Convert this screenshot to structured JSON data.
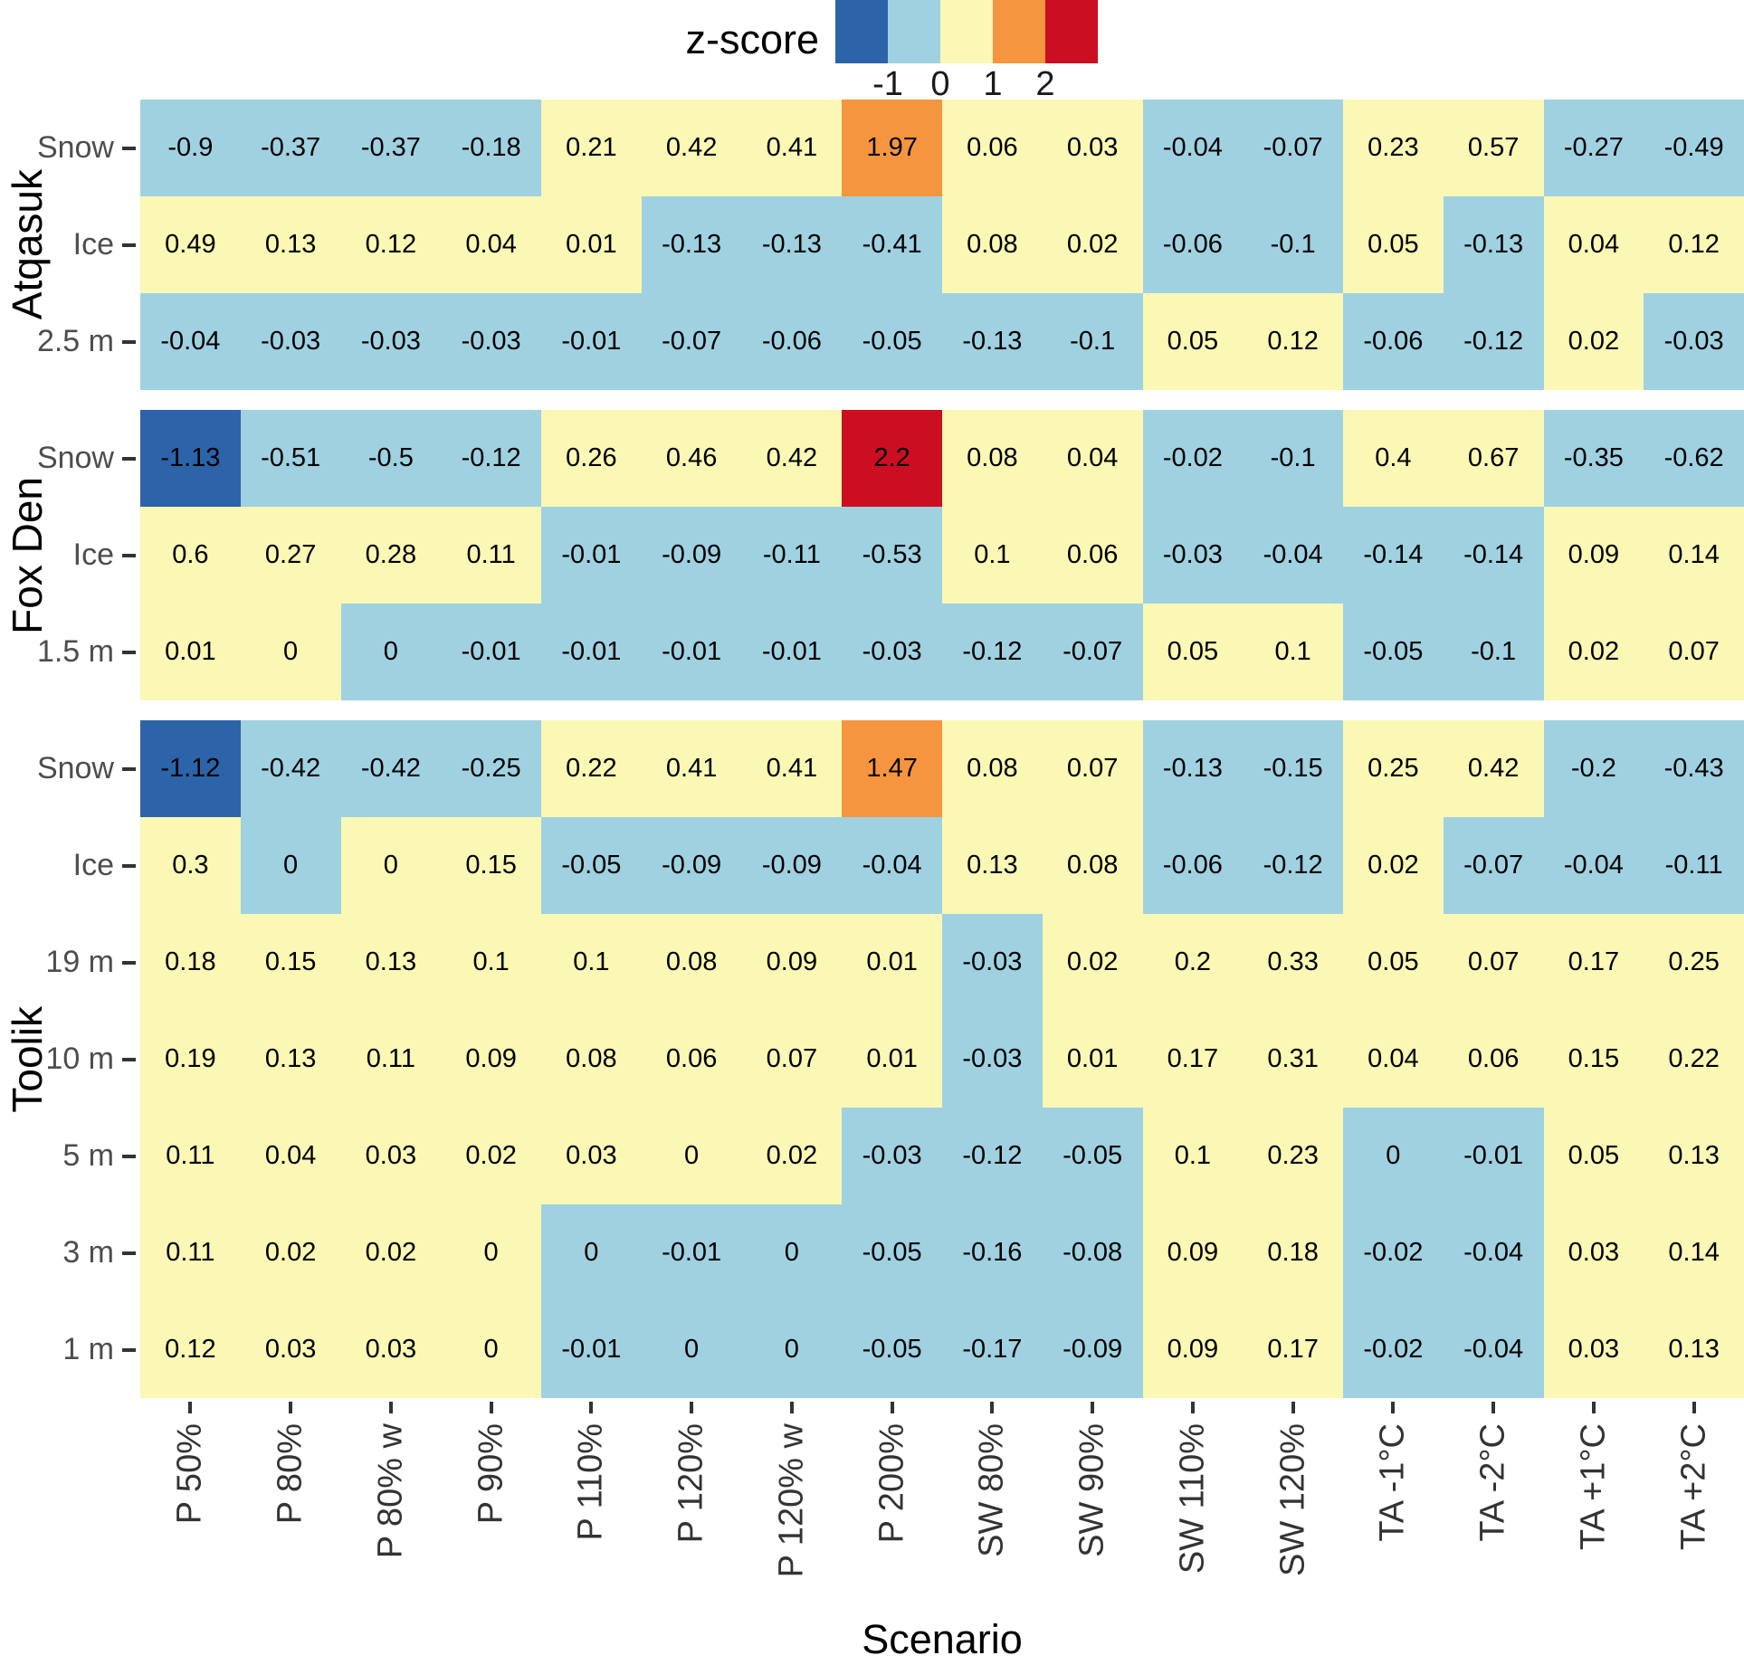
{
  "chart_data": {
    "type": "heatmap",
    "legend_title": "z-score",
    "legend_ticks": [
      "-1",
      "0",
      "1",
      "2"
    ],
    "xlabel": "Scenario",
    "bin_order": [
      "darkblue",
      "lightblue",
      "yellow",
      "orange",
      "red"
    ],
    "colors": {
      "darkblue": "#2C63A9",
      "lightblue": "#9FD1E1",
      "yellow": "#FAF8B4",
      "orange": "#F6953F",
      "red": "#CB0E21"
    },
    "bin_meaning": {
      "darkblue": "< -1",
      "lightblue": "-1 to 0",
      "yellow": "0 to 1",
      "orange": "1 to 2",
      "red": "> 2"
    },
    "x_categories": [
      "P 50%",
      "P 80%",
      "P 80% w",
      "P 90%",
      "P 110%",
      "P 120%",
      "P 120% w",
      "P 200%",
      "SW 80%",
      "SW 90%",
      "SW 110%",
      "SW 120%",
      "TA -1°C",
      "TA -2°C",
      "TA +1°C",
      "TA +2°C"
    ],
    "facets": [
      {
        "label": "Atqasuk",
        "rows": [
          {
            "label": "Snow",
            "values": [
              "-0.9",
              "-0.37",
              "-0.37",
              "-0.18",
              "0.21",
              "0.42",
              "0.41",
              "1.97",
              "0.06",
              "0.03",
              "-0.04",
              "-0.07",
              "0.23",
              "0.57",
              "-0.27",
              "-0.49"
            ],
            "bins": [
              "lightblue",
              "lightblue",
              "lightblue",
              "lightblue",
              "yellow",
              "yellow",
              "yellow",
              "orange",
              "yellow",
              "yellow",
              "lightblue",
              "lightblue",
              "yellow",
              "yellow",
              "lightblue",
              "lightblue"
            ]
          },
          {
            "label": "Ice",
            "values": [
              "0.49",
              "0.13",
              "0.12",
              "0.04",
              "0.01",
              "-0.13",
              "-0.13",
              "-0.41",
              "0.08",
              "0.02",
              "-0.06",
              "-0.1",
              "0.05",
              "-0.13",
              "0.04",
              "0.12"
            ],
            "bins": [
              "yellow",
              "yellow",
              "yellow",
              "yellow",
              "yellow",
              "lightblue",
              "lightblue",
              "lightblue",
              "yellow",
              "yellow",
              "lightblue",
              "lightblue",
              "yellow",
              "lightblue",
              "yellow",
              "yellow"
            ]
          },
          {
            "label": "2.5 m",
            "values": [
              "-0.04",
              "-0.03",
              "-0.03",
              "-0.03",
              "-0.01",
              "-0.07",
              "-0.06",
              "-0.05",
              "-0.13",
              "-0.1",
              "0.05",
              "0.12",
              "-0.06",
              "-0.12",
              "0.02",
              "-0.03"
            ],
            "bins": [
              "lightblue",
              "lightblue",
              "lightblue",
              "lightblue",
              "lightblue",
              "lightblue",
              "lightblue",
              "lightblue",
              "lightblue",
              "lightblue",
              "yellow",
              "yellow",
              "lightblue",
              "lightblue",
              "yellow",
              "lightblue"
            ]
          }
        ]
      },
      {
        "label": "Fox Den",
        "rows": [
          {
            "label": "Snow",
            "values": [
              "-1.13",
              "-0.51",
              "-0.5",
              "-0.12",
              "0.26",
              "0.46",
              "0.42",
              "2.2",
              "0.08",
              "0.04",
              "-0.02",
              "-0.1",
              "0.4",
              "0.67",
              "-0.35",
              "-0.62"
            ],
            "bins": [
              "darkblue",
              "lightblue",
              "lightblue",
              "lightblue",
              "yellow",
              "yellow",
              "yellow",
              "red",
              "yellow",
              "yellow",
              "lightblue",
              "lightblue",
              "yellow",
              "yellow",
              "lightblue",
              "lightblue"
            ]
          },
          {
            "label": "Ice",
            "values": [
              "0.6",
              "0.27",
              "0.28",
              "0.11",
              "-0.01",
              "-0.09",
              "-0.11",
              "-0.53",
              "0.1",
              "0.06",
              "-0.03",
              "-0.04",
              "-0.14",
              "-0.14",
              "0.09",
              "0.14"
            ],
            "bins": [
              "yellow",
              "yellow",
              "yellow",
              "yellow",
              "lightblue",
              "lightblue",
              "lightblue",
              "lightblue",
              "yellow",
              "yellow",
              "lightblue",
              "lightblue",
              "lightblue",
              "lightblue",
              "yellow",
              "yellow"
            ]
          },
          {
            "label": "1.5 m",
            "values": [
              "0.01",
              "0",
              "0",
              "-0.01",
              "-0.01",
              "-0.01",
              "-0.01",
              "-0.03",
              "-0.12",
              "-0.07",
              "0.05",
              "0.1",
              "-0.05",
              "-0.1",
              "0.02",
              "0.07"
            ],
            "bins": [
              "yellow",
              "yellow",
              "lightblue",
              "lightblue",
              "lightblue",
              "lightblue",
              "lightblue",
              "lightblue",
              "lightblue",
              "lightblue",
              "yellow",
              "yellow",
              "lightblue",
              "lightblue",
              "yellow",
              "yellow"
            ]
          }
        ]
      },
      {
        "label": "Toolik",
        "rows": [
          {
            "label": "Snow",
            "values": [
              "-1.12",
              "-0.42",
              "-0.42",
              "-0.25",
              "0.22",
              "0.41",
              "0.41",
              "1.47",
              "0.08",
              "0.07",
              "-0.13",
              "-0.15",
              "0.25",
              "0.42",
              "-0.2",
              "-0.43"
            ],
            "bins": [
              "darkblue",
              "lightblue",
              "lightblue",
              "lightblue",
              "yellow",
              "yellow",
              "yellow",
              "orange",
              "yellow",
              "yellow",
              "lightblue",
              "lightblue",
              "yellow",
              "yellow",
              "lightblue",
              "lightblue"
            ]
          },
          {
            "label": "Ice",
            "values": [
              "0.3",
              "0",
              "0",
              "0.15",
              "-0.05",
              "-0.09",
              "-0.09",
              "-0.04",
              "0.13",
              "0.08",
              "-0.06",
              "-0.12",
              "0.02",
              "-0.07",
              "-0.04",
              "-0.11"
            ],
            "bins": [
              "yellow",
              "lightblue",
              "yellow",
              "yellow",
              "lightblue",
              "lightblue",
              "lightblue",
              "lightblue",
              "yellow",
              "yellow",
              "lightblue",
              "lightblue",
              "yellow",
              "lightblue",
              "lightblue",
              "lightblue"
            ]
          },
          {
            "label": "19 m",
            "values": [
              "0.18",
              "0.15",
              "0.13",
              "0.1",
              "0.1",
              "0.08",
              "0.09",
              "0.01",
              "-0.03",
              "0.02",
              "0.2",
              "0.33",
              "0.05",
              "0.07",
              "0.17",
              "0.25"
            ],
            "bins": [
              "yellow",
              "yellow",
              "yellow",
              "yellow",
              "yellow",
              "yellow",
              "yellow",
              "yellow",
              "lightblue",
              "yellow",
              "yellow",
              "yellow",
              "yellow",
              "yellow",
              "yellow",
              "yellow"
            ]
          },
          {
            "label": "10 m",
            "values": [
              "0.19",
              "0.13",
              "0.11",
              "0.09",
              "0.08",
              "0.06",
              "0.07",
              "0.01",
              "-0.03",
              "0.01",
              "0.17",
              "0.31",
              "0.04",
              "0.06",
              "0.15",
              "0.22"
            ],
            "bins": [
              "yellow",
              "yellow",
              "yellow",
              "yellow",
              "yellow",
              "yellow",
              "yellow",
              "yellow",
              "lightblue",
              "yellow",
              "yellow",
              "yellow",
              "yellow",
              "yellow",
              "yellow",
              "yellow"
            ]
          },
          {
            "label": "5 m",
            "values": [
              "0.11",
              "0.04",
              "0.03",
              "0.02",
              "0.03",
              "0",
              "0.02",
              "-0.03",
              "-0.12",
              "-0.05",
              "0.1",
              "0.23",
              "0",
              "-0.01",
              "0.05",
              "0.13"
            ],
            "bins": [
              "yellow",
              "yellow",
              "yellow",
              "yellow",
              "yellow",
              "yellow",
              "yellow",
              "lightblue",
              "lightblue",
              "lightblue",
              "yellow",
              "yellow",
              "lightblue",
              "lightblue",
              "yellow",
              "yellow"
            ]
          },
          {
            "label": "3 m",
            "values": [
              "0.11",
              "0.02",
              "0.02",
              "0",
              "0",
              "-0.01",
              "0",
              "-0.05",
              "-0.16",
              "-0.08",
              "0.09",
              "0.18",
              "-0.02",
              "-0.04",
              "0.03",
              "0.14"
            ],
            "bins": [
              "yellow",
              "yellow",
              "yellow",
              "yellow",
              "lightblue",
              "lightblue",
              "lightblue",
              "lightblue",
              "lightblue",
              "lightblue",
              "yellow",
              "yellow",
              "lightblue",
              "lightblue",
              "yellow",
              "yellow"
            ]
          },
          {
            "label": "1 m",
            "values": [
              "0.12",
              "0.03",
              "0.03",
              "0",
              "-0.01",
              "0",
              "0",
              "-0.05",
              "-0.17",
              "-0.09",
              "0.09",
              "0.17",
              "-0.02",
              "-0.04",
              "0.03",
              "0.13"
            ],
            "bins": [
              "yellow",
              "yellow",
              "yellow",
              "yellow",
              "lightblue",
              "lightblue",
              "lightblue",
              "lightblue",
              "lightblue",
              "lightblue",
              "yellow",
              "yellow",
              "lightblue",
              "lightblue",
              "yellow",
              "yellow"
            ]
          }
        ]
      }
    ]
  }
}
